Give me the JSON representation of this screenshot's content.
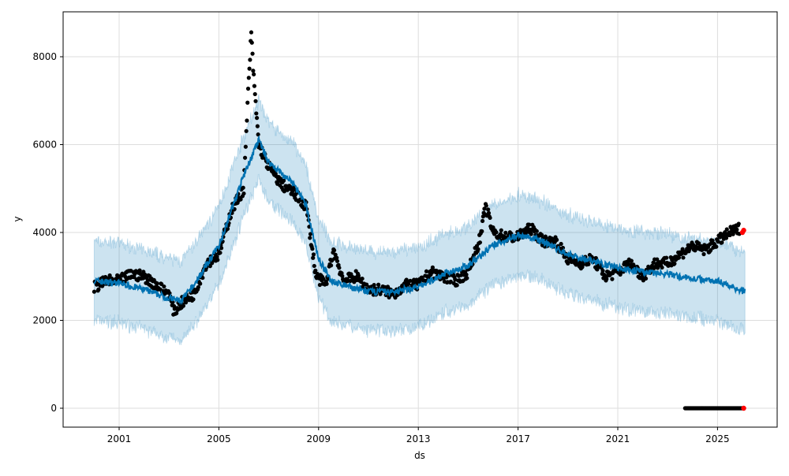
{
  "chart_data": {
    "type": "line",
    "title": "",
    "xlabel": "ds",
    "ylabel": "y",
    "xlim": [
      1998.6,
      2027.3
    ],
    "ylim": [
      -450,
      8800
    ],
    "grid": true,
    "x_ticks": [
      2001,
      2005,
      2009,
      2013,
      2017,
      2021,
      2025
    ],
    "y_ticks": [
      0,
      2000,
      4000,
      6000,
      8000
    ],
    "colors": {
      "observed": "#000000",
      "forecast": "#0072B2",
      "band": "#0072B2",
      "holdout": "#ff0000"
    },
    "uncertainty_half_width": 900,
    "observed": [
      [
        2000.0,
        2750
      ],
      [
        2000.5,
        2900
      ],
      [
        2001,
        2900
      ],
      [
        2001.5,
        3050
      ],
      [
        2002,
        3000
      ],
      [
        2002.5,
        2800
      ],
      [
        2003,
        2600
      ],
      [
        2003.2,
        2200
      ],
      [
        2003.5,
        2400
      ],
      [
        2004,
        2600
      ],
      [
        2004.5,
        3300
      ],
      [
        2005,
        3500
      ],
      [
        2005.5,
        4500
      ],
      [
        2006,
        5000
      ],
      [
        2006.2,
        7500
      ],
      [
        2006.3,
        8500
      ],
      [
        2006.4,
        7500
      ],
      [
        2006.6,
        6000
      ],
      [
        2007,
        5500
      ],
      [
        2007.5,
        5100
      ],
      [
        2008,
        4900
      ],
      [
        2008.5,
        4600
      ],
      [
        2008.9,
        3000
      ],
      [
        2009.3,
        2800
      ],
      [
        2009.6,
        3600
      ],
      [
        2010,
        2900
      ],
      [
        2010.5,
        3000
      ],
      [
        2011,
        2700
      ],
      [
        2011.5,
        2700
      ],
      [
        2012,
        2600
      ],
      [
        2012.5,
        2800
      ],
      [
        2013,
        2800
      ],
      [
        2013.5,
        3100
      ],
      [
        2014,
        3000
      ],
      [
        2014.5,
        2900
      ],
      [
        2015,
        3100
      ],
      [
        2015.5,
        3900
      ],
      [
        2015.7,
        4600
      ],
      [
        2016,
        4000
      ],
      [
        2016.5,
        3900
      ],
      [
        2017,
        3900
      ],
      [
        2017.5,
        4100
      ],
      [
        2018,
        3800
      ],
      [
        2018.5,
        3800
      ],
      [
        2019,
        3400
      ],
      [
        2019.5,
        3300
      ],
      [
        2020,
        3400
      ],
      [
        2020.5,
        3000
      ],
      [
        2021,
        3100
      ],
      [
        2021.5,
        3300
      ],
      [
        2022,
        3000
      ],
      [
        2022.5,
        3300
      ],
      [
        2023,
        3300
      ],
      [
        2023.5,
        3500
      ],
      [
        2024,
        3700
      ],
      [
        2024.5,
        3600
      ],
      [
        2025,
        3800
      ],
      [
        2025.5,
        4000
      ],
      [
        2025.9,
        4100
      ]
    ],
    "observed_zero_range": [
      2023.7,
      2026.0
    ],
    "holdout": [
      [
        2026.0,
        4000
      ],
      [
        2026.05,
        4050
      ],
      [
        2026.05,
        0
      ]
    ],
    "yhat": [
      [
        2000,
        2900
      ],
      [
        2001,
        2850
      ],
      [
        2002,
        2700
      ],
      [
        2003,
        2500
      ],
      [
        2003.5,
        2450
      ],
      [
        2004,
        2800
      ],
      [
        2005,
        3700
      ],
      [
        2006,
        5300
      ],
      [
        2006.6,
        6100
      ],
      [
        2007,
        5600
      ],
      [
        2008,
        5100
      ],
      [
        2008.5,
        4600
      ],
      [
        2009,
        3400
      ],
      [
        2009.5,
        2900
      ],
      [
        2010,
        2800
      ],
      [
        2011,
        2650
      ],
      [
        2012,
        2650
      ],
      [
        2013,
        2750
      ],
      [
        2014,
        3050
      ],
      [
        2015,
        3250
      ],
      [
        2016,
        3700
      ],
      [
        2017,
        3950
      ],
      [
        2018,
        3800
      ],
      [
        2019,
        3500
      ],
      [
        2020,
        3350
      ],
      [
        2021,
        3200
      ],
      [
        2022,
        3100
      ],
      [
        2023,
        3050
      ],
      [
        2024,
        2950
      ],
      [
        2025,
        2900
      ],
      [
        2026.1,
        2650
      ]
    ]
  }
}
